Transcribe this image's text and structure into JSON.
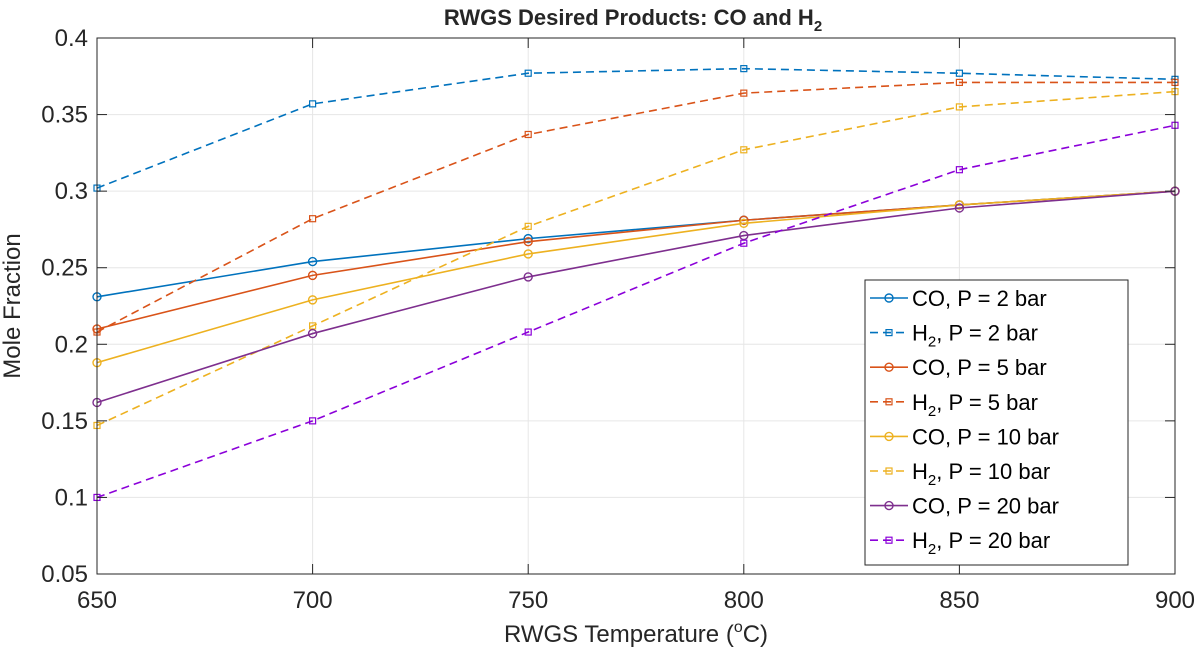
{
  "chart_data": {
    "type": "line",
    "title": "RWGS Desired Products: CO and H",
    "title_subscript": "2",
    "xlabel": "RWGS Temperature (",
    "xlabel_superscript": "o",
    "xlabel_suffix": "C)",
    "ylabel": "Mole Fraction",
    "x": [
      650,
      700,
      750,
      800,
      850,
      900
    ],
    "xlim": [
      650,
      900
    ],
    "ylim": [
      0.05,
      0.4
    ],
    "xticks": [
      "650",
      "700",
      "750",
      "800",
      "850",
      "900"
    ],
    "yticks": [
      "0.05",
      "0.1",
      "0.15",
      "0.2",
      "0.25",
      "0.3",
      "0.35",
      "0.4"
    ],
    "grid": true,
    "legend_position": "bottom-right",
    "series": [
      {
        "name": "CO, P = 2 bar",
        "species": "CO",
        "pressure": "2",
        "color": "#0072BD",
        "style": "solid",
        "marker": "circle",
        "values": [
          0.231,
          0.254,
          0.269,
          0.281,
          0.291,
          0.3
        ]
      },
      {
        "name": "H2,  P = 2 bar",
        "species": "H",
        "pressure": "2",
        "color": "#0072BD",
        "style": "dashed",
        "marker": "square",
        "values": [
          0.302,
          0.357,
          0.377,
          0.38,
          0.377,
          0.373
        ]
      },
      {
        "name": "CO, P = 5 bar",
        "species": "CO",
        "pressure": "5",
        "color": "#D95319",
        "style": "solid",
        "marker": "circle",
        "values": [
          0.21,
          0.245,
          0.267,
          0.281,
          0.291,
          0.3
        ]
      },
      {
        "name": "H2,  P = 5 bar",
        "species": "H",
        "pressure": "5",
        "color": "#D95319",
        "style": "dashed",
        "marker": "square",
        "values": [
          0.208,
          0.282,
          0.337,
          0.364,
          0.371,
          0.371
        ]
      },
      {
        "name": "CO, P = 10 bar",
        "species": "CO",
        "pressure": "10",
        "color": "#EDB120",
        "style": "solid",
        "marker": "circle",
        "values": [
          0.188,
          0.229,
          0.259,
          0.279,
          0.291,
          0.3
        ]
      },
      {
        "name": "H2,  P = 10 bar",
        "species": "H",
        "pressure": "10",
        "color": "#EDB120",
        "style": "dashed",
        "marker": "square",
        "values": [
          0.147,
          0.212,
          0.277,
          0.327,
          0.355,
          0.365
        ]
      },
      {
        "name": "CO, P = 20 bar",
        "species": "CO",
        "pressure": "20",
        "color": "#7E2F8E",
        "style": "solid",
        "marker": "circle",
        "values": [
          0.162,
          0.207,
          0.244,
          0.271,
          0.289,
          0.3
        ]
      },
      {
        "name": "H2,  P = 20 bar",
        "species": "H",
        "pressure": "20",
        "color": "#8B00D9",
        "style": "dashed",
        "marker": "square",
        "values": [
          0.1,
          0.15,
          0.208,
          0.266,
          0.314,
          0.343
        ]
      }
    ]
  }
}
